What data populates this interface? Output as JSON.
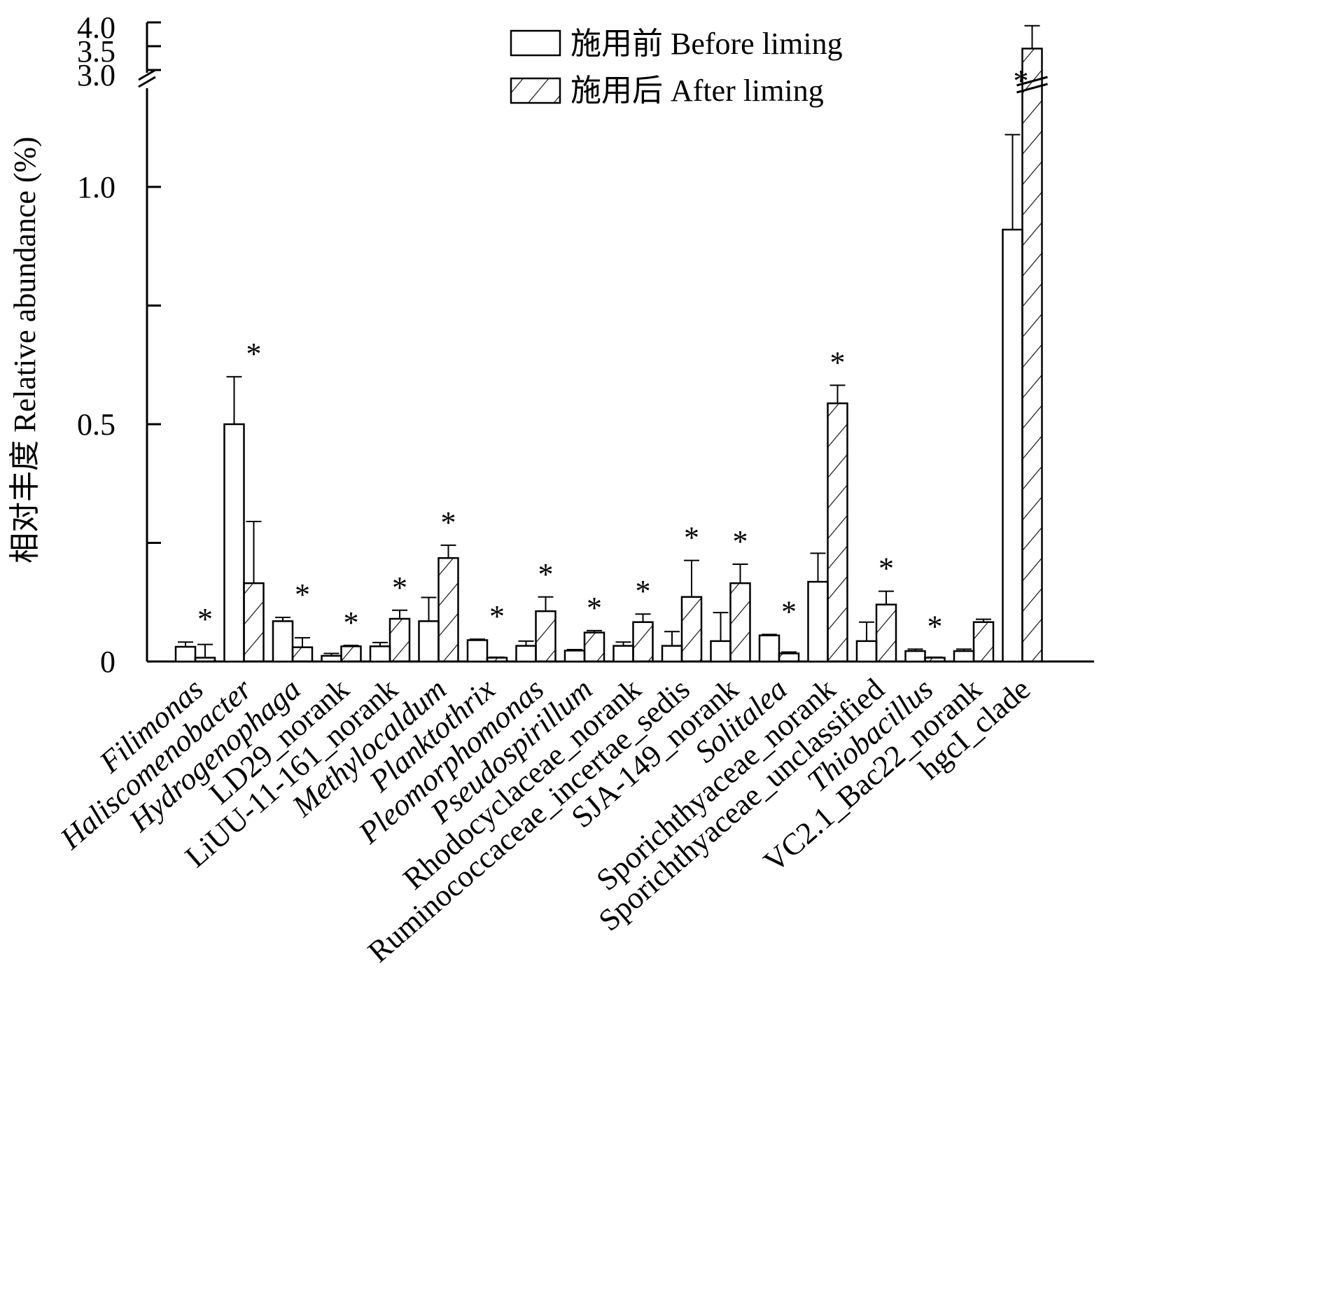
{
  "chart_data": {
    "type": "bar",
    "title": "",
    "xlabel": "",
    "ylabel": "相对丰度 Relative abundance (%)",
    "ylim_lower": [
      0,
      1.2
    ],
    "ylim_upper": [
      3.0,
      4.0
    ],
    "y_ticks_lower": [
      "0",
      "0.5",
      "1.0"
    ],
    "y_ticks_upper": [
      "3.0",
      "3.5",
      "4.0"
    ],
    "grid": false,
    "legend_position": "top-center",
    "categories": [
      {
        "label": "Filimonas",
        "italic": true
      },
      {
        "label": "Haliscomenobacter",
        "italic": true
      },
      {
        "label": "Hydrogenophaga",
        "italic": true
      },
      {
        "label": "LD29_norank",
        "italic": false
      },
      {
        "label": "LiUU-11-161_norank",
        "italic": false
      },
      {
        "label": "Methylocaldum",
        "italic": true
      },
      {
        "label": "Planktothrix",
        "italic": true
      },
      {
        "label": "Pleomorphomonas",
        "italic": true
      },
      {
        "label": "Pseudospirillum",
        "italic": true
      },
      {
        "label": "Rhodocyclaceae_norank",
        "italic": false
      },
      {
        "label": "Ruminococcaceae_incertae_sedis",
        "italic": false
      },
      {
        "label": "SJA-149_norank",
        "italic": false
      },
      {
        "label": "Solitalea",
        "italic": true
      },
      {
        "label": "Sporichthyaceae_norank",
        "italic": false
      },
      {
        "label": "Sporichthyaceae_unclassified",
        "italic": false
      },
      {
        "label": "Thiobacillus",
        "italic": true
      },
      {
        "label": "VC2.1_Bac22_norank",
        "italic": false
      },
      {
        "label": "hgcI_clade",
        "italic": false
      }
    ],
    "series": [
      {
        "name": "施用前 Before liming",
        "pattern": "open",
        "values": [
          0.031,
          0.5,
          0.085,
          0.012,
          0.032,
          0.085,
          0.045,
          0.033,
          0.023,
          0.033,
          0.033,
          0.043,
          0.055,
          0.168,
          0.043,
          0.022,
          0.022,
          0.91
        ],
        "errors": [
          0.01,
          0.1,
          0.008,
          0.005,
          0.008,
          0.05,
          0.002,
          0.01,
          0.002,
          0.008,
          0.03,
          0.06,
          0.002,
          0.06,
          0.04,
          0.004,
          0.004,
          0.2
        ]
      },
      {
        "name": "施用后 After liming",
        "pattern": "hatched",
        "values": [
          0.008,
          0.165,
          0.03,
          0.032,
          0.09,
          0.218,
          0.008,
          0.106,
          0.061,
          0.083,
          0.136,
          0.165,
          0.017,
          0.544,
          0.12,
          0.008,
          0.083,
          3.45
        ],
        "errors": [
          0.028,
          0.13,
          0.02,
          0.002,
          0.018,
          0.027,
          0.001,
          0.03,
          0.004,
          0.017,
          0.077,
          0.04,
          0.003,
          0.038,
          0.028,
          0.001,
          0.006,
          0.48
        ]
      }
    ],
    "significance_marker": "*",
    "significant": [
      true,
      true,
      true,
      true,
      true,
      true,
      true,
      true,
      true,
      true,
      true,
      true,
      true,
      true,
      true,
      true,
      false,
      true
    ]
  }
}
